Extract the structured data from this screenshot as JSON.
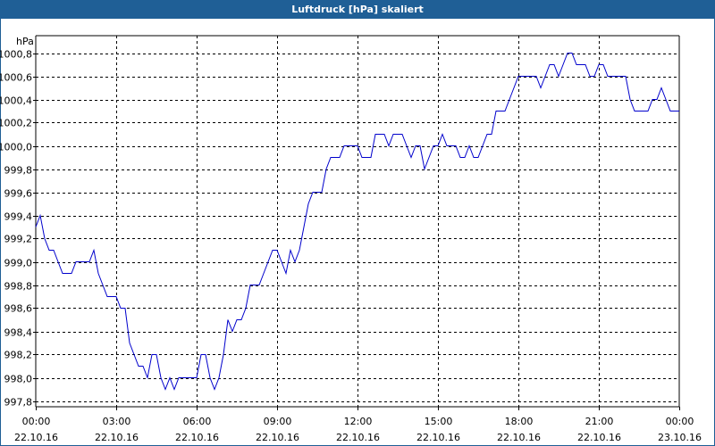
{
  "window": {
    "title": "Luftdruck [hPa] skaliert"
  },
  "chart_data": {
    "type": "line",
    "title": "Luftdruck [hPa] skaliert",
    "unit_label": "hPa",
    "xlabel": "",
    "ylabel": "",
    "ylim": [
      997.75,
      1000.95
    ],
    "xlim": [
      "2016-10-22T00:00",
      "2016-10-23T00:00"
    ],
    "grid": true,
    "line_color": "#0000cc",
    "y_ticks": [
      {
        "value": 997.8,
        "label": "997,8"
      },
      {
        "value": 998.0,
        "label": "998,0"
      },
      {
        "value": 998.2,
        "label": "998,2"
      },
      {
        "value": 998.4,
        "label": "998,4"
      },
      {
        "value": 998.6,
        "label": "998,6"
      },
      {
        "value": 998.8,
        "label": "998,8"
      },
      {
        "value": 999.0,
        "label": "999,0"
      },
      {
        "value": 999.2,
        "label": "999,2"
      },
      {
        "value": 999.4,
        "label": "999,4"
      },
      {
        "value": 999.6,
        "label": "999,6"
      },
      {
        "value": 999.8,
        "label": "999,8"
      },
      {
        "value": 1000.0,
        "label": "1000,0"
      },
      {
        "value": 1000.2,
        "label": "1000,2"
      },
      {
        "value": 1000.4,
        "label": "1000,4"
      },
      {
        "value": 1000.6,
        "label": "1000,6"
      },
      {
        "value": 1000.8,
        "label": "1000,8"
      }
    ],
    "x_ticks": [
      {
        "value": "2016-10-22T00:00",
        "time": "00:00",
        "date": "22.10.16"
      },
      {
        "value": "2016-10-22T03:00",
        "time": "03:00",
        "date": "22.10.16"
      },
      {
        "value": "2016-10-22T06:00",
        "time": "06:00",
        "date": "22.10.16"
      },
      {
        "value": "2016-10-22T09:00",
        "time": "09:00",
        "date": "22.10.16"
      },
      {
        "value": "2016-10-22T12:00",
        "time": "12:00",
        "date": "22.10.16"
      },
      {
        "value": "2016-10-22T15:00",
        "time": "15:00",
        "date": "22.10.16"
      },
      {
        "value": "2016-10-22T18:00",
        "time": "18:00",
        "date": "22.10.16"
      },
      {
        "value": "2016-10-22T21:00",
        "time": "21:00",
        "date": "22.10.16"
      },
      {
        "value": "2016-10-23T00:00",
        "time": "00:00",
        "date": "23.10.16"
      }
    ],
    "series": [
      {
        "x": [
          "2016-10-22T00:00",
          "2016-10-22T00:10",
          "2016-10-22T00:20",
          "2016-10-22T00:30",
          "2016-10-22T00:40",
          "2016-10-22T00:50",
          "2016-10-22T01:00",
          "2016-10-22T01:10",
          "2016-10-22T01:20",
          "2016-10-22T01:30",
          "2016-10-22T01:40",
          "2016-10-22T01:50",
          "2016-10-22T02:00",
          "2016-10-22T02:10",
          "2016-10-22T02:20",
          "2016-10-22T02:30",
          "2016-10-22T02:40",
          "2016-10-22T02:50",
          "2016-10-22T03:00",
          "2016-10-22T03:10",
          "2016-10-22T03:20",
          "2016-10-22T03:30",
          "2016-10-22T03:40",
          "2016-10-22T03:50",
          "2016-10-22T04:00",
          "2016-10-22T04:10",
          "2016-10-22T04:20",
          "2016-10-22T04:30",
          "2016-10-22T04:40",
          "2016-10-22T04:50",
          "2016-10-22T05:00",
          "2016-10-22T05:10",
          "2016-10-22T05:20",
          "2016-10-22T05:30",
          "2016-10-22T05:40",
          "2016-10-22T05:50",
          "2016-10-22T06:00",
          "2016-10-22T06:10",
          "2016-10-22T06:20",
          "2016-10-22T06:30",
          "2016-10-22T06:40",
          "2016-10-22T06:50",
          "2016-10-22T07:00",
          "2016-10-22T07:10",
          "2016-10-22T07:20",
          "2016-10-22T07:30",
          "2016-10-22T07:40",
          "2016-10-22T07:50",
          "2016-10-22T08:00",
          "2016-10-22T08:10",
          "2016-10-22T08:20",
          "2016-10-22T08:30",
          "2016-10-22T08:40",
          "2016-10-22T08:50",
          "2016-10-22T09:00",
          "2016-10-22T09:10",
          "2016-10-22T09:20",
          "2016-10-22T09:30",
          "2016-10-22T09:40",
          "2016-10-22T09:50",
          "2016-10-22T10:00",
          "2016-10-22T10:10",
          "2016-10-22T10:20",
          "2016-10-22T10:30",
          "2016-10-22T10:40",
          "2016-10-22T10:50",
          "2016-10-22T11:00",
          "2016-10-22T11:10",
          "2016-10-22T11:20",
          "2016-10-22T11:30",
          "2016-10-22T11:40",
          "2016-10-22T11:50",
          "2016-10-22T12:00",
          "2016-10-22T12:10",
          "2016-10-22T12:20",
          "2016-10-22T12:30",
          "2016-10-22T12:40",
          "2016-10-22T12:50",
          "2016-10-22T13:00",
          "2016-10-22T13:10",
          "2016-10-22T13:20",
          "2016-10-22T13:30",
          "2016-10-22T13:40",
          "2016-10-22T13:50",
          "2016-10-22T14:00",
          "2016-10-22T14:10",
          "2016-10-22T14:20",
          "2016-10-22T14:30",
          "2016-10-22T14:40",
          "2016-10-22T14:50",
          "2016-10-22T15:00",
          "2016-10-22T15:10",
          "2016-10-22T15:20",
          "2016-10-22T15:30",
          "2016-10-22T15:40",
          "2016-10-22T15:50",
          "2016-10-22T16:00",
          "2016-10-22T16:10",
          "2016-10-22T16:20",
          "2016-10-22T16:30",
          "2016-10-22T16:40",
          "2016-10-22T16:50",
          "2016-10-22T17:00",
          "2016-10-22T17:10",
          "2016-10-22T17:20",
          "2016-10-22T17:30",
          "2016-10-22T17:40",
          "2016-10-22T17:50",
          "2016-10-22T18:00",
          "2016-10-22T18:10",
          "2016-10-22T18:20",
          "2016-10-22T18:30",
          "2016-10-22T18:40",
          "2016-10-22T18:50",
          "2016-10-22T19:00",
          "2016-10-22T19:10",
          "2016-10-22T19:20",
          "2016-10-22T19:30",
          "2016-10-22T19:40",
          "2016-10-22T19:50",
          "2016-10-22T20:00",
          "2016-10-22T20:10",
          "2016-10-22T20:20",
          "2016-10-22T20:30",
          "2016-10-22T20:40",
          "2016-10-22T20:50",
          "2016-10-22T21:00",
          "2016-10-22T21:10",
          "2016-10-22T21:20",
          "2016-10-22T21:30",
          "2016-10-22T21:40",
          "2016-10-22T21:50",
          "2016-10-22T22:00",
          "2016-10-22T22:10",
          "2016-10-22T22:20",
          "2016-10-22T22:30",
          "2016-10-22T22:40",
          "2016-10-22T22:50",
          "2016-10-22T23:00",
          "2016-10-22T23:10",
          "2016-10-22T23:20",
          "2016-10-22T23:30",
          "2016-10-22T23:40",
          "2016-10-22T23:50",
          "2016-10-23T00:00"
        ],
        "y": [
          999.3,
          999.4,
          999.2,
          999.1,
          999.1,
          999.0,
          998.9,
          998.9,
          998.9,
          999.0,
          999.0,
          999.0,
          999.0,
          999.1,
          998.9,
          998.8,
          998.7,
          998.7,
          998.7,
          998.6,
          998.6,
          998.3,
          998.2,
          998.1,
          998.1,
          998.0,
          998.2,
          998.2,
          998.0,
          997.9,
          998.0,
          997.9,
          998.0,
          998.0,
          998.0,
          998.0,
          998.0,
          998.2,
          998.2,
          998.0,
          997.9,
          998.0,
          998.2,
          998.5,
          998.4,
          998.5,
          998.5,
          998.6,
          998.8,
          998.8,
          998.8,
          998.9,
          999.0,
          999.1,
          999.1,
          999.0,
          998.9,
          999.1,
          999.0,
          999.1,
          999.3,
          999.5,
          999.6,
          999.6,
          999.6,
          999.8,
          999.9,
          999.9,
          999.9,
          1000.0,
          1000.0,
          1000.0,
          1000.0,
          999.9,
          999.9,
          999.9,
          1000.1,
          1000.1,
          1000.1,
          1000.0,
          1000.1,
          1000.1,
          1000.1,
          1000.0,
          999.9,
          1000.0,
          1000.0,
          999.8,
          999.9,
          1000.0,
          1000.0,
          1000.1,
          1000.0,
          1000.0,
          1000.0,
          999.9,
          999.9,
          1000.0,
          999.9,
          999.9,
          1000.0,
          1000.1,
          1000.1,
          1000.3,
          1000.3,
          1000.3,
          1000.4,
          1000.5,
          1000.6,
          1000.6,
          1000.6,
          1000.6,
          1000.6,
          1000.5,
          1000.6,
          1000.7,
          1000.7,
          1000.6,
          1000.7,
          1000.8,
          1000.8,
          1000.7,
          1000.7,
          1000.7,
          1000.6,
          1000.6,
          1000.7,
          1000.7,
          1000.6,
          1000.6,
          1000.6,
          1000.6,
          1000.6,
          1000.4,
          1000.3,
          1000.3,
          1000.3,
          1000.3,
          1000.4,
          1000.4,
          1000.5,
          1000.4,
          1000.3,
          1000.3,
          1000.3
        ]
      }
    ]
  }
}
